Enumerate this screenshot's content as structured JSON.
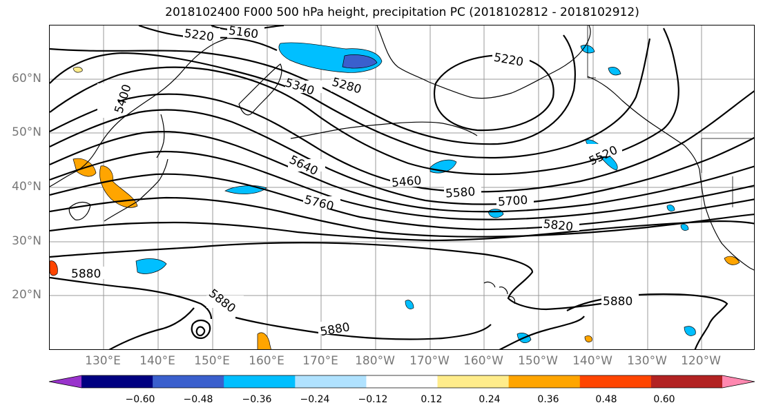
{
  "title": "2018102400 F000 500 hPa height, precipitation PC (2018102812 - 2018102912)",
  "lat_labels": [
    "60°N",
    "50°N",
    "40°N",
    "30°N",
    "20°N"
  ],
  "lon_labels": [
    "130°E",
    "140°E",
    "150°E",
    "160°E",
    "170°E",
    "180°W",
    "170°W",
    "160°W",
    "150°W",
    "140°W",
    "130°W",
    "120°W"
  ],
  "contour_labels": [
    "5160",
    "5220",
    "5400",
    "5340",
    "5280",
    "5220",
    "5520",
    "5640",
    "5460",
    "5580",
    "5700",
    "5760",
    "5820",
    "5880",
    "5880",
    "5880",
    "5880"
  ],
  "colorbar": {
    "ticks": [
      "−0.60",
      "−0.48",
      "−0.36",
      "−0.24",
      "−0.12",
      "0.12",
      "0.24",
      "0.36",
      "0.48",
      "0.60"
    ],
    "colors": [
      "#9933cc",
      "#000080",
      "#3a5fcd",
      "#00bfff",
      "#b0e2ff",
      "#ffffff",
      "#ffec8b",
      "#ffa500",
      "#ff4500",
      "#b22222",
      "#ff88b0"
    ]
  }
}
